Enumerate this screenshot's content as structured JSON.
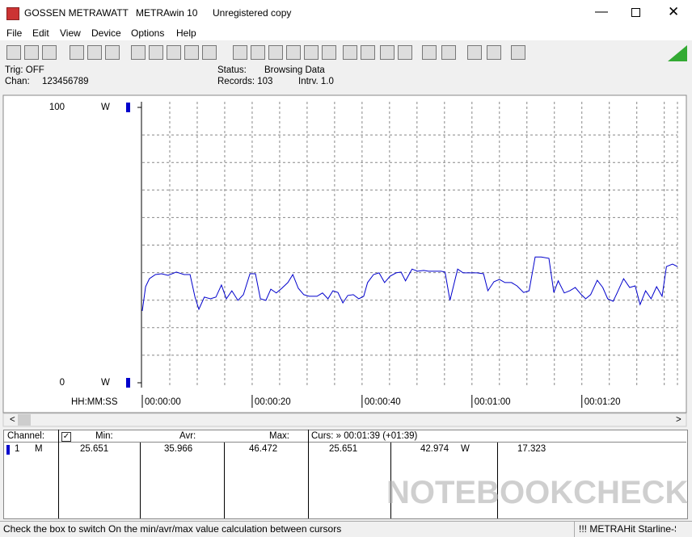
{
  "window": {
    "title_parts": [
      "GOSSEN METRAWATT",
      "METRAwin 10",
      "Unregistered copy"
    ]
  },
  "menu": [
    "File",
    "Edit",
    "View",
    "Device",
    "Options",
    "Help"
  ],
  "info": {
    "trig": "Trig: OFF",
    "chan_label": "Chan:",
    "chan_value": "123456789",
    "status_label": "Status:",
    "status_value": "Browsing Data",
    "records": "Records: 103",
    "interval": "Intrv. 1.0"
  },
  "chart_data": {
    "type": "line",
    "x_label": "HH:MM:SS",
    "y_unit": "W",
    "color": "#0000cc",
    "grid": true,
    "xlim": [
      0,
      97.4
    ],
    "ylim": [
      0,
      100
    ],
    "xticks": [
      {
        "value": 0,
        "label": "00:00:00"
      },
      {
        "value": 20,
        "label": "00:00:20"
      },
      {
        "value": 40,
        "label": "00:00:40"
      },
      {
        "value": 60,
        "label": "00:01:00"
      },
      {
        "value": 80,
        "label": "00:01:20"
      }
    ],
    "yticks": [
      0,
      100
    ],
    "xgrid": [
      5,
      10,
      15,
      20,
      25,
      30,
      35,
      40,
      45,
      50,
      55,
      60,
      65,
      70,
      75,
      80,
      85,
      90,
      95
    ],
    "ygrid": [
      10,
      20,
      30,
      40,
      50,
      60,
      70,
      80,
      90
    ],
    "x": [
      0,
      0.6,
      1.3,
      2.4,
      3.5,
      4.7,
      6.2,
      7.6,
      8.7,
      9.6,
      10.3,
      11.3,
      12.4,
      13.4,
      14.4,
      15.3,
      16.3,
      17.4,
      18.4,
      19.6,
      20.6,
      21.5,
      22.5,
      23.4,
      24.4,
      25.4,
      26.5,
      27.4,
      28.4,
      29.4,
      30.4,
      31.8,
      32.8,
      33.8,
      34.7,
      35.6,
      36.5,
      37.4,
      38.4,
      39.4,
      40.3,
      41.0,
      42.1,
      43.1,
      44.1,
      45.1,
      46.2,
      47.1,
      47.9,
      49.1,
      50.1,
      51.2,
      52.1,
      53.2,
      54.4,
      55.1,
      56.0,
      57.4,
      58.4,
      59.4,
      60.9,
      62.1,
      62.9,
      64.0,
      65.0,
      66.0,
      67.2,
      68.2,
      69.4,
      70.4,
      71.5,
      72.6,
      74.0,
      74.9,
      75.7,
      76.8,
      77.8,
      78.8,
      79.9,
      80.7,
      81.6,
      82.8,
      83.8,
      84.7,
      85.7,
      86.6,
      87.6,
      88.7,
      89.7,
      90.6,
      91.6,
      92.6,
      93.6,
      94.6,
      95.4,
      96.5,
      97.4
    ],
    "values": [
      26.1,
      34.9,
      37.8,
      39.3,
      39.6,
      39.0,
      40.2,
      39.3,
      39.3,
      31.1,
      26.7,
      31.1,
      30.5,
      31.1,
      35.5,
      30.5,
      33.4,
      29.9,
      32.0,
      39.6,
      39.6,
      30.5,
      29.9,
      34.0,
      32.6,
      34.3,
      36.4,
      39.3,
      34.3,
      32.0,
      31.4,
      31.4,
      32.6,
      30.5,
      33.4,
      32.8,
      29.0,
      31.7,
      32.0,
      30.5,
      31.4,
      36.4,
      39.3,
      39.9,
      36.4,
      38.7,
      39.9,
      40.2,
      37.0,
      41.3,
      40.5,
      40.8,
      40.5,
      40.5,
      40.5,
      40.2,
      29.9,
      41.3,
      39.9,
      39.9,
      39.9,
      39.6,
      33.4,
      36.7,
      37.5,
      36.4,
      36.4,
      35.2,
      32.8,
      33.4,
      45.7,
      45.7,
      45.2,
      32.8,
      37.0,
      32.6,
      33.4,
      34.6,
      32.0,
      30.5,
      32.0,
      37.2,
      34.6,
      30.5,
      29.6,
      33.4,
      37.8,
      34.6,
      35.2,
      28.4,
      33.4,
      30.5,
      34.9,
      31.4,
      42.2,
      43.1,
      42.2
    ]
  },
  "table": {
    "headers": [
      "Channel:",
      "Min:",
      "Avr:",
      "Max:",
      "Curs: » 00:01:39 (+01:39)"
    ],
    "rows": [
      [
        "1",
        "M",
        "25.651",
        "35.966",
        "46.472",
        "25.651",
        "42.974",
        "W",
        "17.323"
      ]
    ]
  },
  "status_bar": [
    "Check the box to switch On the min/avr/max value calculation between cursors",
    "!!! METRAHit Starline-Se"
  ],
  "watermark": "NOTEBOOKCHECK"
}
